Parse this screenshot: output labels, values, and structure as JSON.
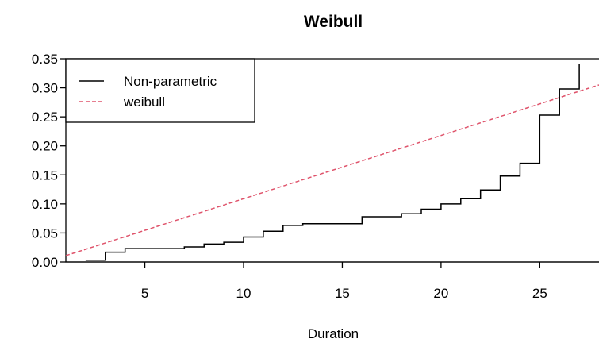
{
  "chart_data": {
    "type": "line",
    "title": "Weibull",
    "xlabel": "Duration",
    "ylabel": "",
    "xlim": [
      1,
      28
    ],
    "ylim": [
      0,
      0.35
    ],
    "xticks": [
      5,
      10,
      15,
      20,
      25
    ],
    "yticks": [
      0.0,
      0.05,
      0.1,
      0.15,
      0.2,
      0.25,
      0.3,
      0.35
    ],
    "ytick_labels": [
      "0.00",
      "0.05",
      "0.10",
      "0.15",
      "0.20",
      "0.25",
      "0.30",
      "0.35"
    ],
    "legend": {
      "position": "top-left"
    },
    "series": [
      {
        "name": "Non-parametric",
        "style": "step",
        "color": "#000000",
        "x": [
          2,
          3,
          4,
          7,
          8,
          9,
          10,
          11,
          12,
          13,
          16,
          18,
          19,
          20,
          21,
          22,
          23,
          24,
          25,
          26,
          27,
          27
        ],
        "y": [
          0.003,
          0.017,
          0.023,
          0.026,
          0.031,
          0.034,
          0.043,
          0.053,
          0.063,
          0.066,
          0.078,
          0.083,
          0.091,
          0.1,
          0.109,
          0.124,
          0.148,
          0.17,
          0.253,
          0.298,
          0.298,
          0.341
        ]
      },
      {
        "name": "weibull",
        "style": "dashed",
        "color": "#DF536B",
        "x": [
          1,
          28
        ],
        "y": [
          0.011,
          0.305
        ]
      }
    ],
    "hline": 0
  }
}
